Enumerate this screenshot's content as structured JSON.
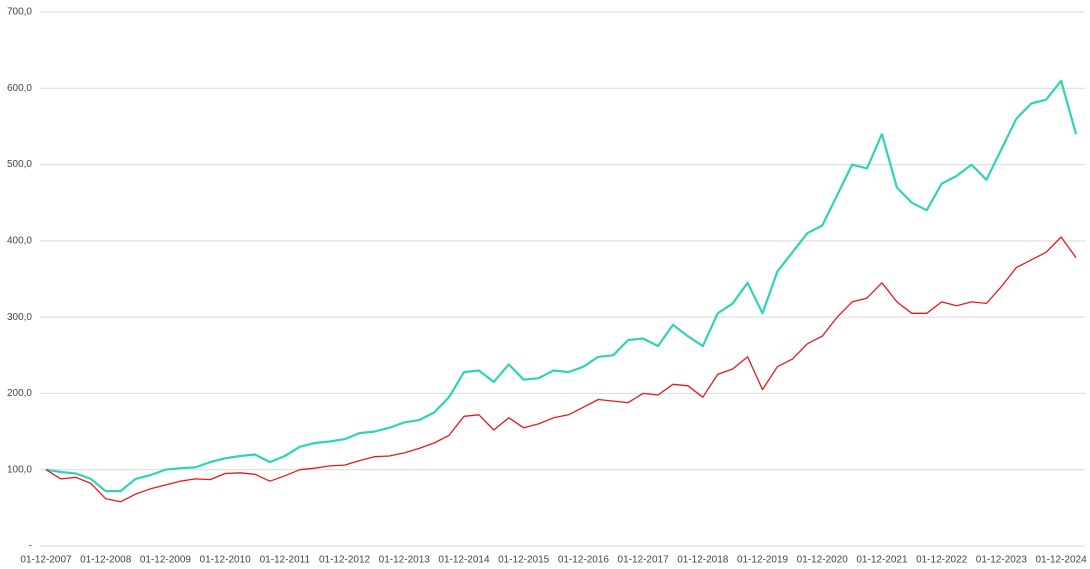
{
  "chart_data": {
    "type": "line",
    "categories": [
      "01-12-2007",
      null,
      null,
      null,
      "01-12-2008",
      null,
      null,
      null,
      "01-12-2009",
      null,
      null,
      null,
      "01-12-2010",
      null,
      null,
      null,
      "01-12-2011",
      null,
      null,
      null,
      "01-12-2012",
      null,
      null,
      null,
      "01-12-2013",
      null,
      null,
      null,
      "01-12-2014",
      null,
      null,
      null,
      "01-12-2015",
      null,
      null,
      null,
      "01-12-2016",
      null,
      null,
      null,
      "01-12-2017",
      null,
      null,
      null,
      "01-12-2018",
      null,
      null,
      null,
      "01-12-2019",
      null,
      null,
      null,
      "01-12-2020",
      null,
      null,
      null,
      "01-12-2021",
      null,
      null,
      null,
      "01-12-2022",
      null,
      null,
      null,
      "01-12-2023",
      null,
      null,
      null,
      "01-12-2024",
      null
    ],
    "series": [
      {
        "color": "#2fd3b8",
        "values": [
          100,
          97,
          95,
          88,
          72,
          72,
          88,
          93,
          100,
          102,
          103,
          110,
          115,
          118,
          120,
          110,
          118,
          130,
          135,
          137,
          140,
          148,
          150,
          155,
          162,
          165,
          175,
          195,
          228,
          230,
          215,
          238,
          218,
          220,
          230,
          228,
          235,
          248,
          250,
          270,
          272,
          262,
          290,
          275,
          262,
          305,
          318,
          345,
          305,
          360,
          385,
          410,
          420,
          460,
          500,
          495,
          540,
          470,
          450,
          440,
          475,
          485,
          500,
          480,
          520,
          560,
          580,
          585,
          610,
          540
        ]
      },
      {
        "color": "#e8191d",
        "values": [
          100,
          88,
          90,
          82,
          62,
          58,
          68,
          75,
          80,
          85,
          88,
          87,
          95,
          96,
          94,
          85,
          92,
          100,
          102,
          105,
          106,
          112,
          117,
          118,
          122,
          128,
          135,
          145,
          170,
          172,
          152,
          168,
          155,
          160,
          168,
          172,
          182,
          192,
          190,
          188,
          200,
          198,
          212,
          210,
          195,
          225,
          232,
          248,
          205,
          235,
          245,
          265,
          275,
          300,
          320,
          325,
          345,
          320,
          305,
          305,
          320,
          315,
          320,
          318,
          340,
          365,
          375,
          385,
          405,
          378
        ]
      }
    ],
    "ylim": [
      0,
      700
    ],
    "yticks": [
      {
        "value": 0,
        "label": "-"
      },
      {
        "value": 100,
        "label": "100,0"
      },
      {
        "value": 200,
        "label": "200,0"
      },
      {
        "value": 300,
        "label": "300,0"
      },
      {
        "value": 400,
        "label": "400,0"
      },
      {
        "value": 500,
        "label": "500,0"
      },
      {
        "value": 600,
        "label": "600,0"
      },
      {
        "value": 700,
        "label": "700,0"
      }
    ],
    "grid": true
  }
}
